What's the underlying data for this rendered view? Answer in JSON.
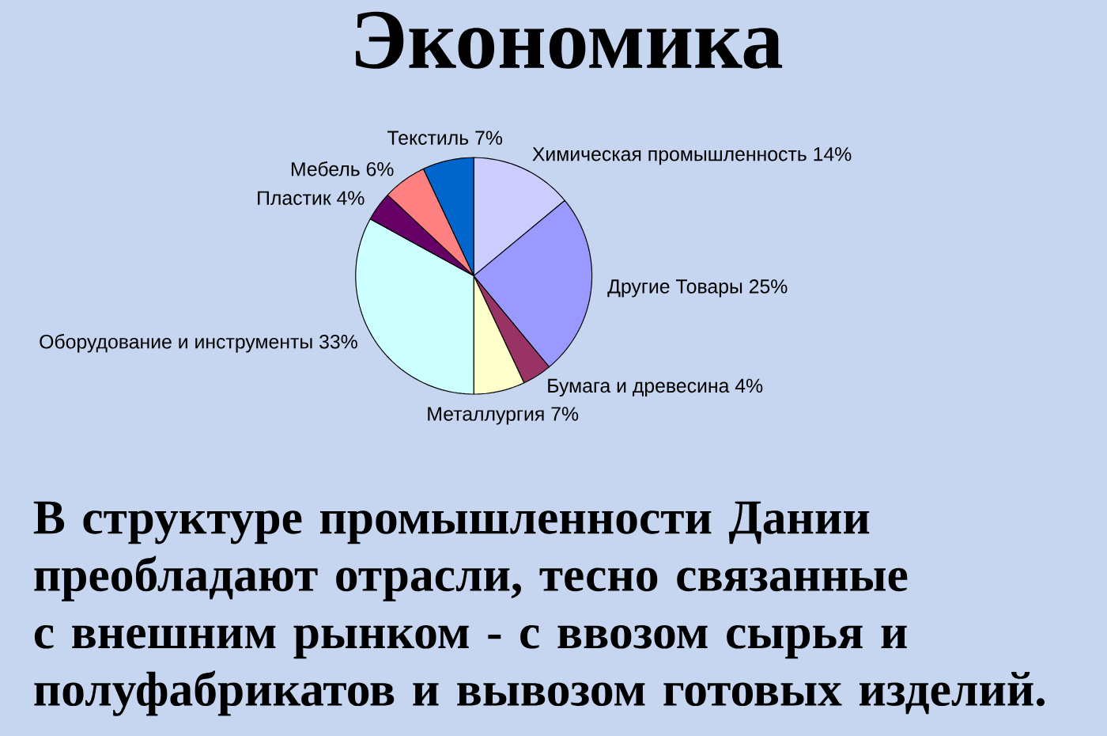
{
  "chart_data": {
    "type": "pie",
    "title": "Экономика",
    "categories": [
      "Химическая промышленность",
      "Другие Товары",
      "Бумага и древесина",
      "Металлургия",
      "Оборудование и инструменты",
      "Пластик",
      "Мебель",
      "Текстиль"
    ],
    "values": [
      14,
      25,
      4,
      7,
      33,
      4,
      6,
      7
    ],
    "value_labels": [
      "14%",
      "25%",
      "4%",
      "7%",
      "33%",
      "4%",
      "6%",
      "7%"
    ],
    "colors": [
      "#ccccff",
      "#9999ff",
      "#993366",
      "#ffffcc",
      "#ccffff",
      "#660066",
      "#ff8080",
      "#0066cc"
    ],
    "annotations": [
      "В структуре промышленности Дании преобладают отрасли, тесно связанные с внешним рынком - с ввозом сырья и полуфабрикатов и вывозом готовых изделий."
    ]
  }
}
